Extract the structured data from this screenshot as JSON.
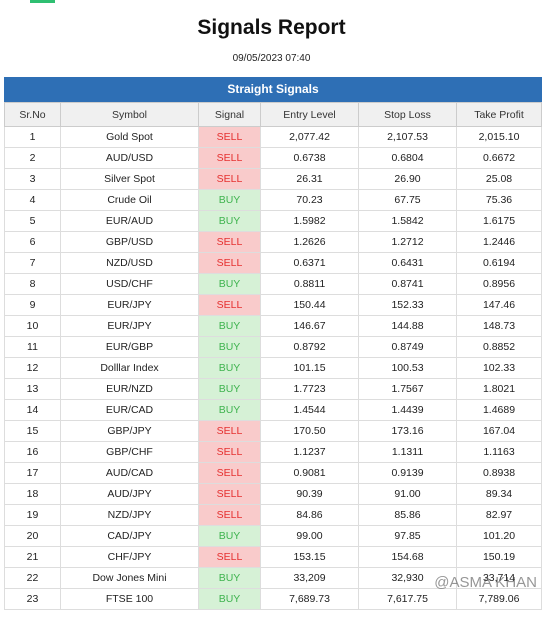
{
  "header": {
    "title": "Signals Report",
    "date": "09/05/2023 07:40"
  },
  "table": {
    "caption": "Straight Signals",
    "columns": [
      "Sr.No",
      "Symbol",
      "Signal",
      "Entry Level",
      "Stop Loss",
      "Take Profit"
    ],
    "signal_styles": {
      "SELL": {
        "bg": "#f9cbcb",
        "fg": "#e5302f"
      },
      "BUY": {
        "bg": "#d6f1d6",
        "fg": "#3fb34f"
      }
    },
    "rows": [
      [
        "1",
        "Gold Spot",
        "SELL",
        "2,077.42",
        "2,107.53",
        "2,015.10"
      ],
      [
        "2",
        "AUD/USD",
        "SELL",
        "0.6738",
        "0.6804",
        "0.6672"
      ],
      [
        "3",
        "Silver Spot",
        "SELL",
        "26.31",
        "26.90",
        "25.08"
      ],
      [
        "4",
        "Crude Oil",
        "BUY",
        "70.23",
        "67.75",
        "75.36"
      ],
      [
        "5",
        "EUR/AUD",
        "BUY",
        "1.5982",
        "1.5842",
        "1.6175"
      ],
      [
        "6",
        "GBP/USD",
        "SELL",
        "1.2626",
        "1.2712",
        "1.2446"
      ],
      [
        "7",
        "NZD/USD",
        "SELL",
        "0.6371",
        "0.6431",
        "0.6194"
      ],
      [
        "8",
        "USD/CHF",
        "BUY",
        "0.8811",
        "0.8741",
        "0.8956"
      ],
      [
        "9",
        "EUR/JPY",
        "SELL",
        "150.44",
        "152.33",
        "147.46"
      ],
      [
        "10",
        "EUR/JPY",
        "BUY",
        "146.67",
        "144.88",
        "148.73"
      ],
      [
        "11",
        "EUR/GBP",
        "BUY",
        "0.8792",
        "0.8749",
        "0.8852"
      ],
      [
        "12",
        "Dolllar Index",
        "BUY",
        "101.15",
        "100.53",
        "102.33"
      ],
      [
        "13",
        "EUR/NZD",
        "BUY",
        "1.7723",
        "1.7567",
        "1.8021"
      ],
      [
        "14",
        "EUR/CAD",
        "BUY",
        "1.4544",
        "1.4439",
        "1.4689"
      ],
      [
        "15",
        "GBP/JPY",
        "SELL",
        "170.50",
        "173.16",
        "167.04"
      ],
      [
        "16",
        "GBP/CHF",
        "SELL",
        "1.1237",
        "1.1311",
        "1.1163"
      ],
      [
        "17",
        "AUD/CAD",
        "SELL",
        "0.9081",
        "0.9139",
        "0.8938"
      ],
      [
        "18",
        "AUD/JPY",
        "SELL",
        "90.39",
        "91.00",
        "89.34"
      ],
      [
        "19",
        "NZD/JPY",
        "SELL",
        "84.86",
        "85.86",
        "82.97"
      ],
      [
        "20",
        "CAD/JPY",
        "BUY",
        "99.00",
        "97.85",
        "101.20"
      ],
      [
        "21",
        "CHF/JPY",
        "SELL",
        "153.15",
        "154.68",
        "150.19"
      ],
      [
        "22",
        "Dow Jones Mini",
        "BUY",
        "33,209",
        "32,930",
        "33,714"
      ],
      [
        "23",
        "FTSE 100",
        "BUY",
        "7,689.73",
        "7,617.75",
        "7,789.06"
      ]
    ]
  },
  "watermark": "@ASMA KHAN"
}
